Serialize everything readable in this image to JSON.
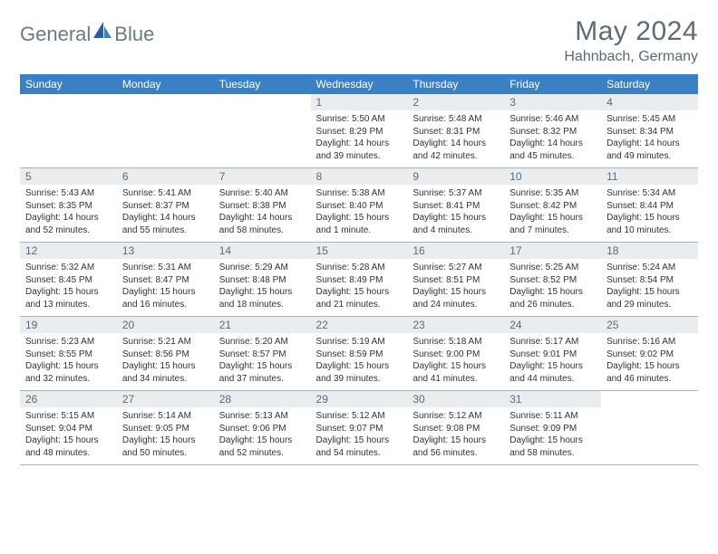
{
  "brand": {
    "name_part1": "General",
    "name_part2": "Blue"
  },
  "title": "May 2024",
  "location": "Hahnbach, Germany",
  "colors": {
    "header_bg": "#3a80c3",
    "header_text": "#ffffff",
    "daynum_bg": "#e9edf0",
    "text_muted": "#5c6b76",
    "rule": "#a8b4bd",
    "body_text": "#333333",
    "page_bg": "#ffffff"
  },
  "typography": {
    "title_fontsize": 30,
    "location_fontsize": 16,
    "dayhead_fontsize": 12,
    "daynum_fontsize": 12,
    "body_fontsize": 10
  },
  "weekdays": [
    "Sunday",
    "Monday",
    "Tuesday",
    "Wednesday",
    "Thursday",
    "Friday",
    "Saturday"
  ],
  "weeks": [
    [
      {
        "n": "",
        "sunrise": "",
        "sunset": "",
        "daylight": ""
      },
      {
        "n": "",
        "sunrise": "",
        "sunset": "",
        "daylight": ""
      },
      {
        "n": "",
        "sunrise": "",
        "sunset": "",
        "daylight": ""
      },
      {
        "n": "1",
        "sunrise": "Sunrise: 5:50 AM",
        "sunset": "Sunset: 8:29 PM",
        "daylight": "Daylight: 14 hours and 39 minutes."
      },
      {
        "n": "2",
        "sunrise": "Sunrise: 5:48 AM",
        "sunset": "Sunset: 8:31 PM",
        "daylight": "Daylight: 14 hours and 42 minutes."
      },
      {
        "n": "3",
        "sunrise": "Sunrise: 5:46 AM",
        "sunset": "Sunset: 8:32 PM",
        "daylight": "Daylight: 14 hours and 45 minutes."
      },
      {
        "n": "4",
        "sunrise": "Sunrise: 5:45 AM",
        "sunset": "Sunset: 8:34 PM",
        "daylight": "Daylight: 14 hours and 49 minutes."
      }
    ],
    [
      {
        "n": "5",
        "sunrise": "Sunrise: 5:43 AM",
        "sunset": "Sunset: 8:35 PM",
        "daylight": "Daylight: 14 hours and 52 minutes."
      },
      {
        "n": "6",
        "sunrise": "Sunrise: 5:41 AM",
        "sunset": "Sunset: 8:37 PM",
        "daylight": "Daylight: 14 hours and 55 minutes."
      },
      {
        "n": "7",
        "sunrise": "Sunrise: 5:40 AM",
        "sunset": "Sunset: 8:38 PM",
        "daylight": "Daylight: 14 hours and 58 minutes."
      },
      {
        "n": "8",
        "sunrise": "Sunrise: 5:38 AM",
        "sunset": "Sunset: 8:40 PM",
        "daylight": "Daylight: 15 hours and 1 minute."
      },
      {
        "n": "9",
        "sunrise": "Sunrise: 5:37 AM",
        "sunset": "Sunset: 8:41 PM",
        "daylight": "Daylight: 15 hours and 4 minutes."
      },
      {
        "n": "10",
        "sunrise": "Sunrise: 5:35 AM",
        "sunset": "Sunset: 8:42 PM",
        "daylight": "Daylight: 15 hours and 7 minutes."
      },
      {
        "n": "11",
        "sunrise": "Sunrise: 5:34 AM",
        "sunset": "Sunset: 8:44 PM",
        "daylight": "Daylight: 15 hours and 10 minutes."
      }
    ],
    [
      {
        "n": "12",
        "sunrise": "Sunrise: 5:32 AM",
        "sunset": "Sunset: 8:45 PM",
        "daylight": "Daylight: 15 hours and 13 minutes."
      },
      {
        "n": "13",
        "sunrise": "Sunrise: 5:31 AM",
        "sunset": "Sunset: 8:47 PM",
        "daylight": "Daylight: 15 hours and 16 minutes."
      },
      {
        "n": "14",
        "sunrise": "Sunrise: 5:29 AM",
        "sunset": "Sunset: 8:48 PM",
        "daylight": "Daylight: 15 hours and 18 minutes."
      },
      {
        "n": "15",
        "sunrise": "Sunrise: 5:28 AM",
        "sunset": "Sunset: 8:49 PM",
        "daylight": "Daylight: 15 hours and 21 minutes."
      },
      {
        "n": "16",
        "sunrise": "Sunrise: 5:27 AM",
        "sunset": "Sunset: 8:51 PM",
        "daylight": "Daylight: 15 hours and 24 minutes."
      },
      {
        "n": "17",
        "sunrise": "Sunrise: 5:25 AM",
        "sunset": "Sunset: 8:52 PM",
        "daylight": "Daylight: 15 hours and 26 minutes."
      },
      {
        "n": "18",
        "sunrise": "Sunrise: 5:24 AM",
        "sunset": "Sunset: 8:54 PM",
        "daylight": "Daylight: 15 hours and 29 minutes."
      }
    ],
    [
      {
        "n": "19",
        "sunrise": "Sunrise: 5:23 AM",
        "sunset": "Sunset: 8:55 PM",
        "daylight": "Daylight: 15 hours and 32 minutes."
      },
      {
        "n": "20",
        "sunrise": "Sunrise: 5:21 AM",
        "sunset": "Sunset: 8:56 PM",
        "daylight": "Daylight: 15 hours and 34 minutes."
      },
      {
        "n": "21",
        "sunrise": "Sunrise: 5:20 AM",
        "sunset": "Sunset: 8:57 PM",
        "daylight": "Daylight: 15 hours and 37 minutes."
      },
      {
        "n": "22",
        "sunrise": "Sunrise: 5:19 AM",
        "sunset": "Sunset: 8:59 PM",
        "daylight": "Daylight: 15 hours and 39 minutes."
      },
      {
        "n": "23",
        "sunrise": "Sunrise: 5:18 AM",
        "sunset": "Sunset: 9:00 PM",
        "daylight": "Daylight: 15 hours and 41 minutes."
      },
      {
        "n": "24",
        "sunrise": "Sunrise: 5:17 AM",
        "sunset": "Sunset: 9:01 PM",
        "daylight": "Daylight: 15 hours and 44 minutes."
      },
      {
        "n": "25",
        "sunrise": "Sunrise: 5:16 AM",
        "sunset": "Sunset: 9:02 PM",
        "daylight": "Daylight: 15 hours and 46 minutes."
      }
    ],
    [
      {
        "n": "26",
        "sunrise": "Sunrise: 5:15 AM",
        "sunset": "Sunset: 9:04 PM",
        "daylight": "Daylight: 15 hours and 48 minutes."
      },
      {
        "n": "27",
        "sunrise": "Sunrise: 5:14 AM",
        "sunset": "Sunset: 9:05 PM",
        "daylight": "Daylight: 15 hours and 50 minutes."
      },
      {
        "n": "28",
        "sunrise": "Sunrise: 5:13 AM",
        "sunset": "Sunset: 9:06 PM",
        "daylight": "Daylight: 15 hours and 52 minutes."
      },
      {
        "n": "29",
        "sunrise": "Sunrise: 5:12 AM",
        "sunset": "Sunset: 9:07 PM",
        "daylight": "Daylight: 15 hours and 54 minutes."
      },
      {
        "n": "30",
        "sunrise": "Sunrise: 5:12 AM",
        "sunset": "Sunset: 9:08 PM",
        "daylight": "Daylight: 15 hours and 56 minutes."
      },
      {
        "n": "31",
        "sunrise": "Sunrise: 5:11 AM",
        "sunset": "Sunset: 9:09 PM",
        "daylight": "Daylight: 15 hours and 58 minutes."
      },
      {
        "n": "",
        "sunrise": "",
        "sunset": "",
        "daylight": ""
      }
    ]
  ]
}
